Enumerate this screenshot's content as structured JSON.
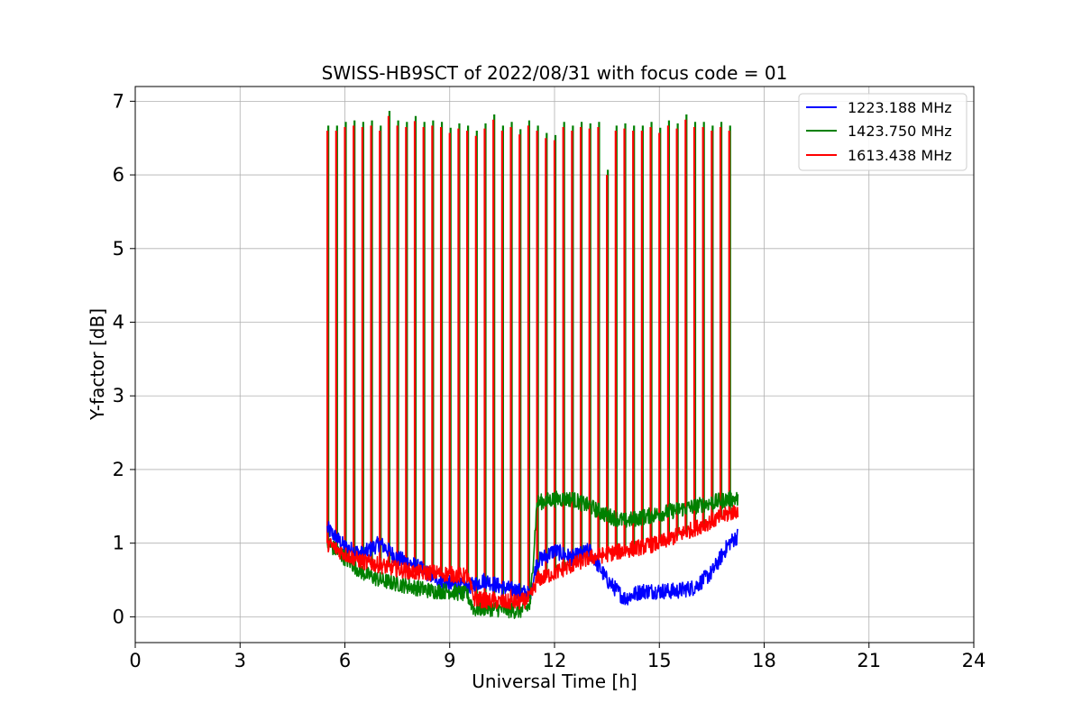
{
  "chart_data": {
    "type": "line",
    "title": "SWISS-HB9SCT of 2022/08/31 with focus code = 01",
    "xlabel": "Universal Time [h]",
    "ylabel": "Y-factor [dB]",
    "xlim": [
      0,
      24
    ],
    "ylim": [
      -0.35,
      7.2
    ],
    "xticks": [
      "0",
      "3",
      "6",
      "9",
      "12",
      "15",
      "18",
      "21",
      "24"
    ],
    "yticks": [
      "0",
      "1",
      "2",
      "3",
      "4",
      "5",
      "6",
      "7"
    ],
    "grid": true,
    "legend_position": "top-right",
    "calibration_spikes": {
      "times": [
        5.5,
        5.75,
        6.0,
        6.25,
        6.5,
        6.75,
        7.0,
        7.25,
        7.5,
        7.75,
        8.0,
        8.25,
        8.5,
        8.75,
        9.0,
        9.25,
        9.5,
        9.75,
        10.0,
        10.25,
        10.5,
        10.75,
        11.0,
        11.25,
        11.5,
        11.75,
        12.0,
        12.25,
        12.5,
        12.75,
        13.0,
        13.25,
        13.5,
        13.75,
        14.0,
        14.25,
        14.5,
        14.75,
        15.0,
        15.25,
        15.5,
        15.75,
        16.0,
        16.25,
        16.5,
        16.75,
        17.0
      ],
      "peaks": [
        6.65,
        6.65,
        6.7,
        6.72,
        6.7,
        6.72,
        6.65,
        6.85,
        6.72,
        6.7,
        6.78,
        6.7,
        6.72,
        6.7,
        6.62,
        6.68,
        6.65,
        6.58,
        6.68,
        6.8,
        6.65,
        6.7,
        6.6,
        6.72,
        6.65,
        6.55,
        6.52,
        6.7,
        6.65,
        6.7,
        6.68,
        6.7,
        6.05,
        6.65,
        6.68,
        6.65,
        6.65,
        6.7,
        6.62,
        6.72,
        6.68,
        6.8,
        6.7,
        6.7,
        6.65,
        6.7,
        6.65
      ]
    },
    "series": [
      {
        "name": "1223.188 MHz",
        "color": "#0000ff",
        "x": [
          5.5,
          6.0,
          6.5,
          7.0,
          7.5,
          8.0,
          8.5,
          9.0,
          9.5,
          10.0,
          10.5,
          11.0,
          11.3,
          11.5,
          12.0,
          12.5,
          13.0,
          13.5,
          14.0,
          14.5,
          15.0,
          15.5,
          16.0,
          16.5,
          17.0,
          17.25
        ],
        "y": [
          1.2,
          0.95,
          0.85,
          1.0,
          0.8,
          0.7,
          0.55,
          0.45,
          0.4,
          0.5,
          0.4,
          0.35,
          0.3,
          0.75,
          0.9,
          0.8,
          0.9,
          0.5,
          0.25,
          0.35,
          0.35,
          0.35,
          0.4,
          0.6,
          1.0,
          1.1
        ]
      },
      {
        "name": "1423.750 MHz",
        "color": "#008000",
        "x": [
          5.5,
          6.0,
          6.5,
          7.0,
          7.5,
          8.0,
          8.5,
          9.0,
          9.5,
          9.7,
          10.0,
          10.5,
          11.0,
          11.3,
          11.5,
          12.0,
          12.5,
          13.0,
          13.5,
          14.0,
          14.5,
          15.0,
          15.5,
          16.0,
          16.5,
          17.0,
          17.25
        ],
        "y": [
          1.0,
          0.8,
          0.6,
          0.5,
          0.45,
          0.4,
          0.35,
          0.35,
          0.3,
          0.1,
          0.12,
          0.1,
          0.08,
          0.15,
          1.55,
          1.6,
          1.6,
          1.5,
          1.38,
          1.3,
          1.35,
          1.4,
          1.45,
          1.5,
          1.55,
          1.6,
          1.6
        ]
      },
      {
        "name": "1613.438 MHz",
        "color": "#ff0000",
        "x": [
          5.5,
          6.0,
          6.5,
          7.0,
          7.5,
          8.0,
          8.5,
          9.0,
          9.5,
          9.7,
          10.0,
          10.5,
          11.0,
          11.3,
          11.5,
          12.0,
          12.5,
          13.0,
          13.5,
          14.0,
          14.5,
          15.0,
          15.5,
          16.0,
          16.5,
          17.0,
          17.25
        ],
        "y": [
          1.0,
          0.85,
          0.75,
          0.7,
          0.65,
          0.6,
          0.6,
          0.58,
          0.55,
          0.25,
          0.22,
          0.2,
          0.2,
          0.25,
          0.5,
          0.6,
          0.7,
          0.8,
          0.85,
          0.9,
          0.95,
          1.0,
          1.1,
          1.2,
          1.3,
          1.4,
          1.45
        ]
      }
    ]
  }
}
